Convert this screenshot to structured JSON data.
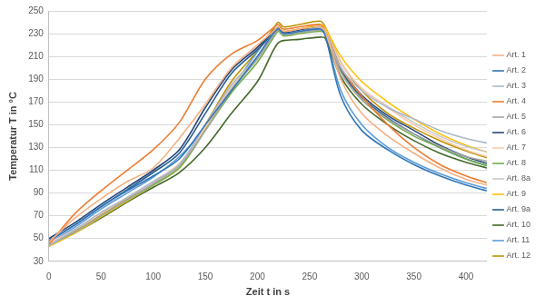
{
  "chart_data": {
    "type": "line",
    "x_label": "Zeit t in s",
    "y_label": "Temperatur T in °C",
    "x": [
      0,
      25,
      50,
      75,
      100,
      125,
      150,
      175,
      200,
      215,
      220,
      225,
      240,
      260,
      265,
      280,
      300,
      325,
      350,
      375,
      400,
      420
    ],
    "xlim": [
      0,
      420
    ],
    "xticks": [
      0,
      50,
      100,
      150,
      200,
      250,
      300,
      350,
      400
    ],
    "ylim": [
      30,
      250
    ],
    "yticks": [
      30,
      50,
      70,
      90,
      110,
      130,
      150,
      170,
      190,
      210,
      230,
      250
    ],
    "grid": true,
    "legend": "right",
    "series": [
      {
        "name": "Art. 1",
        "color": "#f4b183",
        "values": [
          47,
          68,
          85,
          100,
          112,
          138,
          168,
          200,
          220,
          232,
          236,
          232,
          234,
          236,
          232,
          190,
          160,
          140,
          125,
          112,
          102,
          97
        ]
      },
      {
        "name": "Art. 2",
        "color": "#2e75b6",
        "values": [
          48,
          62,
          78,
          92,
          105,
          120,
          150,
          180,
          210,
          230,
          234,
          230,
          232,
          234,
          228,
          175,
          145,
          128,
          115,
          105,
          97,
          92
        ]
      },
      {
        "name": "Art. 3",
        "color": "#adb9ca",
        "values": [
          44,
          58,
          73,
          86,
          100,
          115,
          150,
          185,
          210,
          230,
          234,
          230,
          232,
          235,
          232,
          200,
          180,
          165,
          155,
          145,
          138,
          134
        ]
      },
      {
        "name": "Art. 4",
        "color": "#ed7d31",
        "values": [
          45,
          72,
          92,
          110,
          128,
          152,
          190,
          212,
          224,
          235,
          238,
          234,
          236,
          238,
          232,
          200,
          175,
          150,
          130,
          115,
          105,
          99
        ]
      },
      {
        "name": "Art. 5",
        "color": "#a5a5a5",
        "values": [
          44,
          56,
          70,
          84,
          98,
          114,
          145,
          180,
          208,
          228,
          233,
          229,
          231,
          233,
          230,
          196,
          172,
          155,
          142,
          131,
          122,
          118
        ]
      },
      {
        "name": "Art. 6",
        "color": "#264478",
        "values": [
          50,
          64,
          80,
          95,
          110,
          128,
          165,
          198,
          218,
          232,
          235,
          231,
          233,
          236,
          232,
          200,
          176,
          158,
          145,
          132,
          122,
          116
        ]
      },
      {
        "name": "Art. 7",
        "color": "#f8cbad",
        "values": [
          46,
          58,
          72,
          86,
          100,
          116,
          148,
          184,
          210,
          230,
          235,
          231,
          233,
          236,
          233,
          205,
          182,
          165,
          150,
          138,
          128,
          122
        ]
      },
      {
        "name": "Art. 8",
        "color": "#70ad47",
        "values": [
          44,
          56,
          70,
          84,
          97,
          112,
          145,
          178,
          205,
          226,
          232,
          228,
          230,
          232,
          230,
          196,
          172,
          154,
          140,
          130,
          120,
          114
        ]
      },
      {
        "name": "Art. 8a",
        "color": "#c9c9c9",
        "values": [
          45,
          58,
          72,
          86,
          99,
          114,
          148,
          182,
          208,
          228,
          233,
          229,
          231,
          234,
          232,
          204,
          182,
          166,
          152,
          140,
          131,
          126
        ]
      },
      {
        "name": "Art. 9",
        "color": "#ffc000",
        "values": [
          43,
          55,
          69,
          83,
          97,
          112,
          146,
          182,
          210,
          230,
          236,
          232,
          234,
          238,
          235,
          210,
          188,
          170,
          155,
          142,
          132,
          126
        ]
      },
      {
        "name": "Art. 9a",
        "color": "#255e91",
        "values": [
          48,
          62,
          78,
          93,
          108,
          125,
          160,
          195,
          216,
          230,
          234,
          230,
          232,
          235,
          231,
          198,
          174,
          156,
          142,
          130,
          120,
          114
        ]
      },
      {
        "name": "Art. 10",
        "color": "#43682b",
        "values": [
          44,
          55,
          68,
          82,
          95,
          108,
          130,
          160,
          188,
          215,
          222,
          224,
          225,
          227,
          226,
          192,
          168,
          150,
          136,
          125,
          117,
          112
        ]
      },
      {
        "name": "Art. 11",
        "color": "#5b9bd5",
        "values": [
          46,
          60,
          76,
          90,
          104,
          122,
          148,
          182,
          214,
          232,
          236,
          232,
          234,
          236,
          230,
          180,
          150,
          130,
          117,
          107,
          99,
          94
        ]
      },
      {
        "name": "Art. 12",
        "color": "#bf9000",
        "values": [
          45,
          57,
          71,
          85,
          99,
          114,
          150,
          188,
          215,
          234,
          240,
          236,
          238,
          241,
          236,
          205,
          180,
          160,
          147,
          136,
          127,
          121
        ]
      }
    ]
  }
}
